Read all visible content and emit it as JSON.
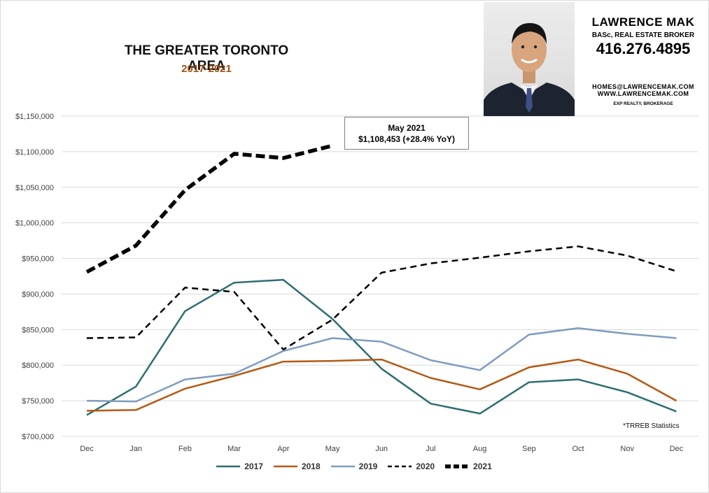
{
  "header": {
    "title": "THE GREATER TORONTO AREA",
    "subtitle": "2017-2021"
  },
  "contact": {
    "name": "LAWRENCE MAK",
    "role": "BASc, REAL ESTATE BROKER",
    "phone": "416.276.4895",
    "email": "HOMES@LAWRENCEMAK.COM",
    "website": "WWW.LAWRENCEMAK.COM",
    "brokerage": "EXP REALTY, BROKERAGE"
  },
  "callout": {
    "line1": "May 2021",
    "line2": "$1,108,453  (+28.4%  YoY)"
  },
  "source_note": "*TRREB Statistics",
  "chart_data": {
    "type": "line",
    "title": "THE GREATER TORONTO AREA",
    "subtitle": "2017-2021",
    "categories": [
      "Dec",
      "Jan",
      "Feb",
      "Mar",
      "Apr",
      "May",
      "Jun",
      "Jul",
      "Aug",
      "Sep",
      "Oct",
      "Nov",
      "Dec"
    ],
    "ylim": [
      700000,
      1150000
    ],
    "yticks": [
      700000,
      750000,
      800000,
      850000,
      900000,
      950000,
      1000000,
      1050000,
      1100000,
      1150000
    ],
    "ytick_labels": [
      "$700,000",
      "$750,000",
      "$800,000",
      "$850,000",
      "$900,000",
      "$950,000",
      "$1,000,000",
      "$1,050,000",
      "$1,100,000",
      "$1,150,000"
    ],
    "grid": true,
    "legend": "bottom",
    "series": [
      {
        "name": "2017",
        "color": "#2e6e73",
        "style": "solid",
        "values": [
          730000,
          770000,
          876000,
          916000,
          920000,
          865000,
          795000,
          746000,
          732000,
          776000,
          780000,
          762000,
          735000
        ]
      },
      {
        "name": "2018",
        "color": "#b35a14",
        "style": "solid",
        "values": [
          736000,
          737000,
          767000,
          785000,
          805000,
          806000,
          808000,
          782000,
          766000,
          797000,
          808000,
          788000,
          750000
        ]
      },
      {
        "name": "2019",
        "color": "#7f9cc0",
        "style": "solid",
        "values": [
          750000,
          749000,
          780000,
          788000,
          820000,
          838000,
          833000,
          807000,
          793000,
          843000,
          852000,
          844000,
          838000
        ]
      },
      {
        "name": "2020",
        "color": "#000000",
        "style": "dashed",
        "values": [
          838000,
          839000,
          909000,
          903000,
          822000,
          864000,
          930000,
          943000,
          951000,
          960000,
          967000,
          954000,
          932000
        ]
      },
      {
        "name": "2021",
        "color": "#000000",
        "style": "bold-dashed",
        "values": [
          931000,
          968000,
          1046000,
          1097000,
          1091000,
          1108453,
          null,
          null,
          null,
          null,
          null,
          null,
          null
        ]
      }
    ],
    "annotation": {
      "category": "May",
      "series": "2021",
      "text": "May 2021 $1,108,453 (+28.4% YoY)"
    }
  }
}
